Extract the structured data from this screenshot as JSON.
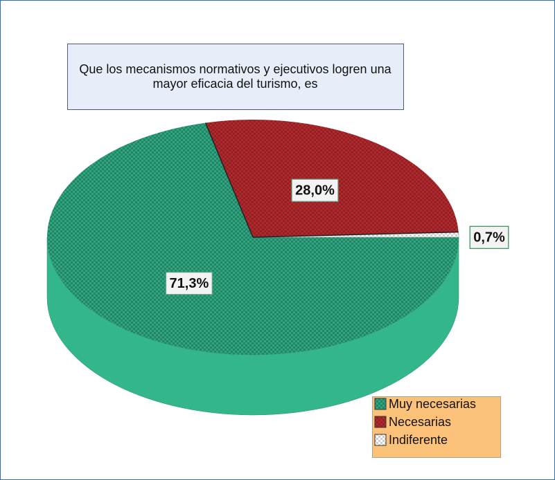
{
  "chart_data": {
    "type": "pie",
    "title": "Que los mecanismos normativos y ejecutivos logren una mayor eficacia del turismo, es",
    "categories": [
      "Muy necesarias",
      "Necesarias",
      "Indiferente"
    ],
    "values": [
      71.3,
      28.0,
      0.7
    ],
    "value_labels": [
      "71,3%",
      "28,0%",
      "0,7%"
    ],
    "colors": [
      "#2fa57f",
      "#b3282d",
      "#ffffff"
    ],
    "legend": "bottom-right"
  }
}
